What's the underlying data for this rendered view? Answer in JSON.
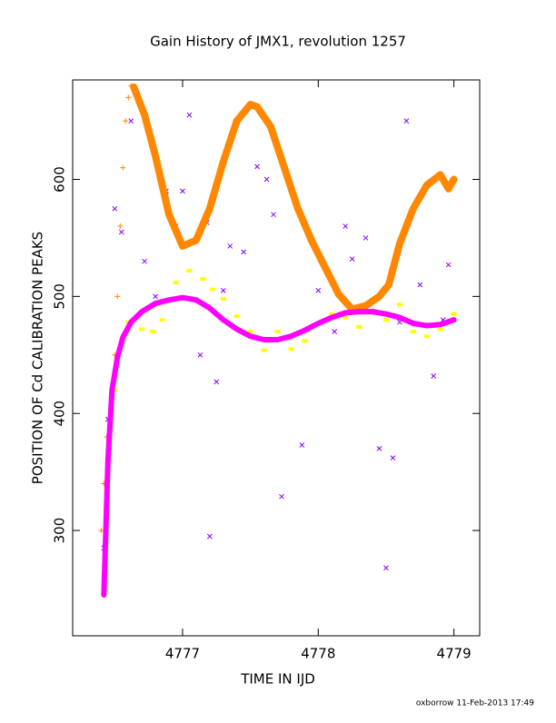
{
  "chart_data": {
    "type": "scatter",
    "title": "Gain History of JMX1, revolution 1257",
    "xlabel": "TIME IN IJD",
    "ylabel": "POSITION OF Cd CALIBRATION PEAKS",
    "footer": "oxborrow 11-Feb-2013 17:49",
    "xlim": [
      4776.19,
      4779.19
    ],
    "ylim": [
      210,
      685
    ],
    "xticks": [
      4777,
      4778,
      4779
    ],
    "yticks": [
      300,
      400,
      500,
      600
    ],
    "series": [
      {
        "color": "#ffff00",
        "style": "points",
        "marker": "square",
        "x": [
          4776.42,
          4776.46,
          4776.5,
          4776.6,
          4776.7,
          4776.78,
          4776.85,
          4776.95,
          4777.05,
          4777.15,
          4777.22,
          4777.3,
          4777.4,
          4777.5,
          4777.6,
          4777.7,
          4777.8,
          4777.9,
          4778.0,
          4778.1,
          4778.2,
          4778.3,
          4778.4,
          4778.5,
          4778.6,
          4778.7,
          4778.8,
          4778.9,
          4779.0
        ],
        "values": [
          245,
          360,
          420,
          478,
          472,
          470,
          480,
          512,
          522,
          515,
          506,
          498,
          483,
          470,
          454,
          470,
          455,
          462,
          476,
          485,
          482,
          474,
          488,
          480,
          493,
          470,
          466,
          472,
          485
        ]
      },
      {
        "color": "#8800ff",
        "style": "points",
        "marker": "x",
        "x": [
          4776.42,
          4776.45,
          4776.5,
          4776.55,
          4776.62,
          4776.72,
          4776.8,
          4776.88,
          4776.95,
          4777.0,
          4777.05,
          4777.13,
          4777.18,
          4777.2,
          4777.25,
          4777.3,
          4777.35,
          4777.45,
          4777.55,
          4777.62,
          4777.67,
          4777.73,
          4777.88,
          4778.0,
          4778.12,
          4778.2,
          4778.25,
          4778.35,
          4778.45,
          4778.5,
          4778.55,
          4778.6,
          4778.65,
          4778.75,
          4778.85,
          4778.92,
          4778.96
        ],
        "values": [
          285,
          395,
          575,
          555,
          650,
          530,
          500,
          590,
          560,
          590,
          655,
          450,
          563,
          295,
          427,
          505,
          543,
          538,
          611,
          600,
          570,
          329,
          373,
          505,
          470,
          560,
          532,
          550,
          370,
          268,
          362,
          478,
          650,
          510,
          432,
          480,
          527
        ]
      },
      {
        "color": "#ff8800",
        "style": "points",
        "marker": "plus",
        "x": [
          4776.4,
          4776.42,
          4776.44,
          4776.46,
          4776.48,
          4776.5,
          4776.52,
          4776.54,
          4776.56,
          4776.58,
          4776.6,
          4776.62
        ],
        "values": [
          300,
          340,
          380,
          370,
          420,
          450,
          500,
          560,
          610,
          650,
          670,
          680
        ]
      },
      {
        "color": "#ff8800",
        "style": "line",
        "width": 8,
        "x": [
          4776.64,
          4776.72,
          4776.8,
          4776.9,
          4777.0,
          4777.1,
          4777.2,
          4777.3,
          4777.4,
          4777.5,
          4777.55,
          4777.65,
          4777.75,
          4777.85,
          4777.95,
          4778.05,
          4778.15,
          4778.25,
          4778.35,
          4778.45,
          4778.52,
          4778.6,
          4778.7,
          4778.8,
          4778.9,
          4778.96,
          4779.0
        ],
        "values": [
          679,
          655,
          620,
          570,
          543,
          548,
          575,
          615,
          650,
          664,
          662,
          645,
          610,
          575,
          548,
          525,
          502,
          489,
          492,
          500,
          510,
          545,
          575,
          595,
          604,
          592,
          600
        ]
      },
      {
        "color": "#ff00ff",
        "style": "line",
        "width": 6,
        "x": [
          4776.42,
          4776.45,
          4776.48,
          4776.52,
          4776.56,
          4776.62,
          4776.7,
          4776.8,
          4776.9,
          4777.0,
          4777.1,
          4777.2,
          4777.3,
          4777.4,
          4777.5,
          4777.6,
          4777.7,
          4777.8,
          4777.9,
          4778.0,
          4778.1,
          4778.2,
          4778.3,
          4778.4,
          4778.5,
          4778.6,
          4778.7,
          4778.8,
          4778.9,
          4779.0
        ],
        "values": [
          245,
          360,
          420,
          448,
          465,
          478,
          487,
          494,
          497,
          499,
          497,
          490,
          480,
          472,
          466,
          463,
          463,
          466,
          471,
          477,
          482,
          486,
          487,
          487,
          485,
          482,
          477,
          475,
          476,
          480
        ]
      }
    ]
  }
}
